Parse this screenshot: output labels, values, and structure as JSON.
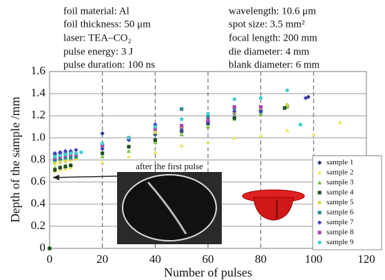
{
  "chart_data": {
    "type": "scatter",
    "annotations": [
      "foil material: Al",
      "foil thickness: 50 μm",
      "laser: TEA–CO₂",
      "pulse energy: 3 J",
      "pulse duration: 100 ns",
      "wavelength: 10.6 μm",
      "spot size: 3.5 mm²",
      "focal length: 200 mm",
      "die diameter: 4 mm",
      "blank diameter: 6 mm"
    ],
    "inset_label": "after the first pulse",
    "x_label": "Number of pulses",
    "y_label": "Depth of the sample /mm",
    "xlim": [
      0,
      120
    ],
    "xticks": [
      0,
      20,
      40,
      60,
      80,
      100,
      120
    ],
    "ylim": [
      0,
      1.6
    ],
    "yticks": [
      0,
      0.2,
      0.4,
      0.6,
      0.8,
      {
        "value": 1,
        "label": "1.0"
      },
      1.2,
      1.4,
      1.6
    ],
    "grid": true,
    "legend": "lower right",
    "series": [
      {
        "name": "sample 1",
        "color": "#2e3a87",
        "marker": "diamond",
        "x": [
          0,
          2,
          4,
          6,
          8,
          20,
          30,
          40,
          50,
          60,
          70,
          80,
          90,
          98
        ],
        "values": [
          0,
          0.85,
          0.86,
          0.86,
          0.87,
          1.04,
          0.99,
          1.03,
          1.09,
          1.15,
          1.22,
          1.25,
          1.29,
          1.37
        ]
      },
      {
        "name": "sample 2",
        "color": "#eaea6a",
        "marker": "triangle",
        "x": [
          0,
          2,
          4,
          6,
          8,
          20,
          30,
          40,
          50,
          60,
          70,
          80,
          90,
          100,
          110
        ],
        "values": [
          0,
          0.7,
          0.71,
          0.72,
          0.73,
          0.78,
          0.83,
          0.87,
          0.93,
          0.96,
          1.0,
          1.02,
          1.07,
          1.03,
          1.14
        ]
      },
      {
        "name": "sample 3",
        "color": "#7cc24a",
        "marker": "triangle",
        "x": [
          0,
          2,
          4,
          6,
          8,
          20,
          30,
          40,
          50,
          60,
          70,
          80,
          90
        ],
        "values": [
          0,
          0.73,
          0.74,
          0.75,
          0.76,
          0.83,
          0.88,
          0.96,
          1.03,
          1.1,
          1.17,
          1.22,
          1.28
        ]
      },
      {
        "name": "sample 4",
        "color": "#1e4d1e",
        "marker": "square",
        "x": [
          0,
          2,
          4,
          6,
          8,
          20,
          30,
          40,
          50,
          60,
          70,
          80,
          89
        ],
        "values": [
          0,
          0.71,
          0.73,
          0.74,
          0.75,
          0.86,
          0.92,
          0.98,
          1.06,
          1.13,
          1.18,
          1.24,
          1.27
        ]
      },
      {
        "name": "sample 5",
        "color": "#d8d84a",
        "marker": "circle",
        "x": [
          2,
          4,
          6,
          8,
          10,
          20,
          30,
          40,
          50,
          60,
          70,
          80,
          90
        ],
        "values": [
          0.77,
          0.78,
          0.79,
          0.8,
          0.81,
          0.92,
          0.99,
          1.05,
          1.1,
          1.15,
          1.23,
          1.27,
          1.3
        ]
      },
      {
        "name": "sample 6",
        "color": "#2a8a8a",
        "marker": "square",
        "x": [
          2,
          4,
          6,
          8,
          10,
          20,
          30,
          40,
          50,
          60,
          70,
          80
        ],
        "values": [
          0.8,
          0.81,
          0.82,
          0.82,
          0.83,
          0.93,
          1.0,
          1.1,
          1.26,
          1.19,
          1.27,
          1.24
        ]
      },
      {
        "name": "sample 7",
        "color": "#4040c0",
        "marker": "diamond",
        "x": [
          2,
          4,
          6,
          8,
          10,
          20,
          30,
          40,
          50,
          60,
          70,
          80,
          97
        ],
        "values": [
          0.86,
          0.87,
          0.88,
          0.88,
          0.89,
          0.9,
          0.98,
          1.12,
          1.07,
          1.14,
          1.24,
          1.24,
          1.36
        ]
      },
      {
        "name": "sample 8",
        "color": "#b040b0",
        "marker": "square",
        "x": [
          2,
          4,
          6,
          8,
          10,
          20,
          30,
          40,
          50,
          60,
          70,
          80
        ],
        "values": [
          0.82,
          0.83,
          0.84,
          0.85,
          0.85,
          0.93,
          1.0,
          1.08,
          1.11,
          1.16,
          1.28,
          1.28
        ]
      },
      {
        "name": "sample 9",
        "color": "#40d0d0",
        "marker": "circle",
        "x": [
          2,
          4,
          6,
          8,
          10,
          12,
          20,
          30,
          40,
          50,
          60,
          70,
          80,
          90,
          95
        ],
        "values": [
          0.83,
          0.84,
          0.85,
          0.86,
          0.86,
          0.87,
          0.95,
          1.0,
          1.1,
          1.17,
          1.22,
          1.35,
          1.36,
          1.43,
          1.12
        ]
      }
    ]
  }
}
